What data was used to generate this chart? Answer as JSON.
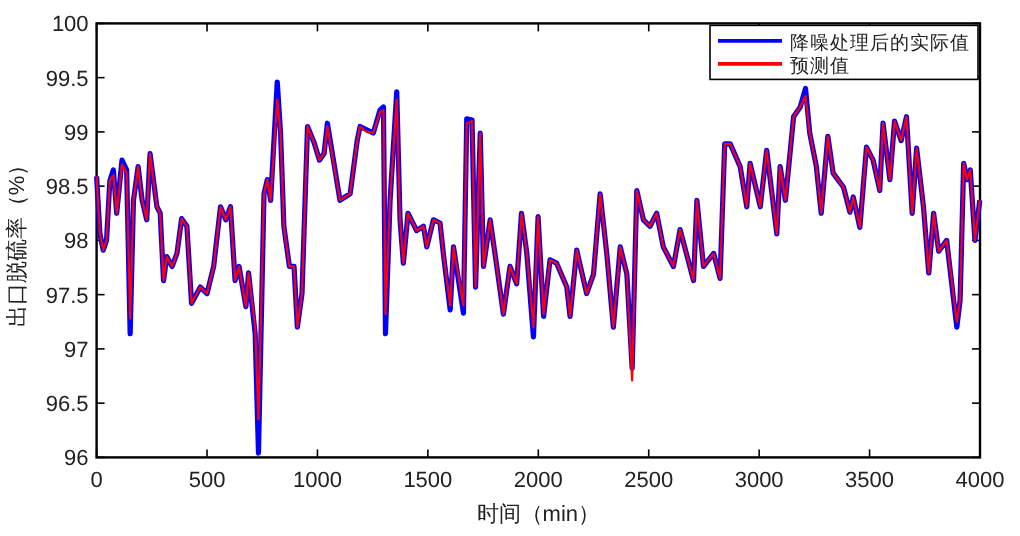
{
  "chart_data": {
    "type": "line",
    "xlabel": "时间（min）",
    "ylabel": "出口脱硫率（%）",
    "xlim": [
      0,
      4000
    ],
    "ylim": [
      96,
      100
    ],
    "xticks": [
      0,
      500,
      1000,
      1500,
      2000,
      2500,
      3000,
      3500,
      4000
    ],
    "yticks": [
      96,
      96.5,
      97,
      97.5,
      98,
      98.5,
      99,
      99.5,
      100
    ],
    "legend": "top right",
    "x": [
      0,
      15,
      30,
      45,
      60,
      76,
      91,
      115,
      136,
      152,
      167,
      188,
      206,
      227,
      242,
      273,
      288,
      303,
      318,
      342,
      364,
      385,
      409,
      430,
      470,
      500,
      530,
      561,
      585,
      606,
      627,
      645,
      676,
      688,
      718,
      733,
      758,
      773,
      788,
      818,
      833,
      848,
      873,
      894,
      909,
      930,
      955,
      985,
      1009,
      1030,
      1045,
      1102,
      1148,
      1180,
      1193,
      1223,
      1253,
      1283,
      1299,
      1308,
      1329,
      1359,
      1374,
      1389,
      1410,
      1449,
      1480,
      1495,
      1525,
      1555,
      1570,
      1601,
      1616,
      1661,
      1676,
      1700,
      1716,
      1737,
      1752,
      1782,
      1812,
      1842,
      1872,
      1902,
      1924,
      1948,
      1978,
      1999,
      2024,
      2053,
      2083,
      2129,
      2144,
      2174,
      2219,
      2250,
      2280,
      2310,
      2340,
      2371,
      2401,
      2425,
      2446,
      2476,
      2506,
      2536,
      2566,
      2612,
      2642,
      2703,
      2718,
      2748,
      2794,
      2823,
      2844,
      2869,
      2914,
      2944,
      2959,
      3005,
      3034,
      3080,
      3095,
      3119,
      3156,
      3186,
      3210,
      3229,
      3259,
      3281,
      3311,
      3335,
      3382,
      3411,
      3426,
      3456,
      3486,
      3516,
      3546,
      3561,
      3592,
      3613,
      3643,
      3667,
      3693,
      3713,
      3744,
      3768,
      3790,
      3813,
      3849,
      3895,
      3910,
      3926,
      3941,
      3956,
      3977,
      3999
    ],
    "series": [
      {
        "name": "降噪处理后的实际值",
        "color": "#0000ff",
        "values": [
          98.59,
          98.06,
          97.91,
          98.0,
          98.55,
          98.65,
          98.25,
          98.74,
          98.65,
          97.14,
          98.37,
          98.68,
          98.37,
          98.19,
          98.8,
          98.31,
          98.25,
          97.63,
          97.85,
          97.76,
          97.88,
          98.2,
          98.13,
          97.42,
          97.57,
          97.51,
          97.76,
          98.31,
          98.19,
          98.31,
          97.63,
          97.76,
          97.39,
          97.7,
          97.14,
          96.04,
          98.43,
          98.56,
          98.37,
          99.46,
          98.99,
          98.13,
          97.76,
          97.76,
          97.2,
          97.51,
          99.05,
          98.9,
          98.74,
          98.8,
          99.08,
          98.37,
          98.43,
          98.92,
          99.05,
          99.02,
          98.99,
          99.2,
          99.23,
          97.14,
          98.37,
          99.37,
          98.19,
          97.79,
          98.25,
          98.09,
          98.13,
          97.94,
          98.19,
          98.16,
          97.88,
          97.36,
          97.94,
          97.33,
          99.12,
          99.11,
          97.57,
          98.99,
          97.76,
          98.19,
          97.76,
          97.32,
          97.76,
          97.6,
          98.25,
          97.88,
          97.11,
          98.22,
          97.3,
          97.82,
          97.79,
          97.57,
          97.3,
          97.91,
          97.51,
          97.69,
          98.43,
          97.88,
          97.2,
          97.94,
          97.69,
          96.82,
          98.46,
          98.19,
          98.13,
          98.25,
          97.94,
          97.76,
          98.1,
          97.63,
          98.37,
          97.76,
          97.88,
          97.65,
          98.89,
          98.89,
          98.68,
          98.31,
          98.71,
          98.31,
          98.83,
          98.06,
          98.68,
          98.37,
          99.14,
          99.23,
          99.4,
          98.99,
          98.68,
          98.25,
          98.96,
          98.62,
          98.49,
          98.26,
          98.4,
          98.12,
          98.86,
          98.74,
          98.46,
          99.08,
          98.56,
          99.1,
          98.92,
          99.14,
          98.25,
          98.85,
          98.31,
          97.7,
          98.25,
          97.9,
          98.0,
          97.2,
          97.45,
          98.71,
          98.56,
          98.65,
          98.0,
          98.37
        ]
      },
      {
        "name": "预测值",
        "color": "#ff0000",
        "values": [
          98.59,
          98.06,
          97.91,
          98.0,
          98.55,
          98.6,
          98.25,
          98.7,
          98.62,
          97.28,
          98.37,
          98.68,
          98.37,
          98.19,
          98.8,
          98.31,
          98.25,
          97.63,
          97.85,
          97.76,
          97.88,
          98.2,
          98.13,
          97.42,
          97.57,
          97.51,
          97.76,
          98.31,
          98.19,
          98.31,
          97.63,
          97.76,
          97.39,
          97.7,
          97.2,
          96.35,
          98.43,
          98.56,
          98.37,
          99.3,
          98.99,
          98.13,
          97.76,
          97.76,
          97.2,
          97.51,
          99.05,
          98.9,
          98.74,
          98.8,
          99.05,
          98.37,
          98.43,
          98.92,
          99.05,
          99.0,
          98.99,
          99.18,
          99.2,
          97.32,
          98.37,
          99.3,
          98.19,
          97.79,
          98.25,
          98.09,
          98.13,
          97.94,
          98.19,
          98.16,
          97.88,
          97.4,
          97.94,
          97.4,
          99.08,
          99.1,
          97.57,
          98.99,
          97.76,
          98.19,
          97.76,
          97.32,
          97.76,
          97.6,
          98.25,
          97.88,
          97.2,
          98.22,
          97.32,
          97.82,
          97.79,
          97.57,
          97.3,
          97.91,
          97.51,
          97.69,
          98.43,
          97.88,
          97.2,
          97.94,
          97.69,
          96.71,
          98.46,
          98.19,
          98.13,
          98.25,
          97.94,
          97.76,
          98.1,
          97.63,
          98.37,
          97.76,
          97.88,
          97.65,
          98.89,
          98.89,
          98.68,
          98.31,
          98.71,
          98.31,
          98.83,
          98.06,
          98.68,
          98.37,
          99.14,
          99.23,
          99.33,
          98.99,
          98.68,
          98.25,
          98.96,
          98.62,
          98.49,
          98.26,
          98.4,
          98.12,
          98.86,
          98.74,
          98.46,
          99.08,
          98.56,
          99.1,
          98.92,
          99.14,
          98.25,
          98.85,
          98.31,
          97.7,
          98.25,
          97.9,
          98.0,
          97.25,
          97.45,
          98.71,
          98.56,
          98.65,
          98.0,
          98.37
        ]
      }
    ]
  }
}
